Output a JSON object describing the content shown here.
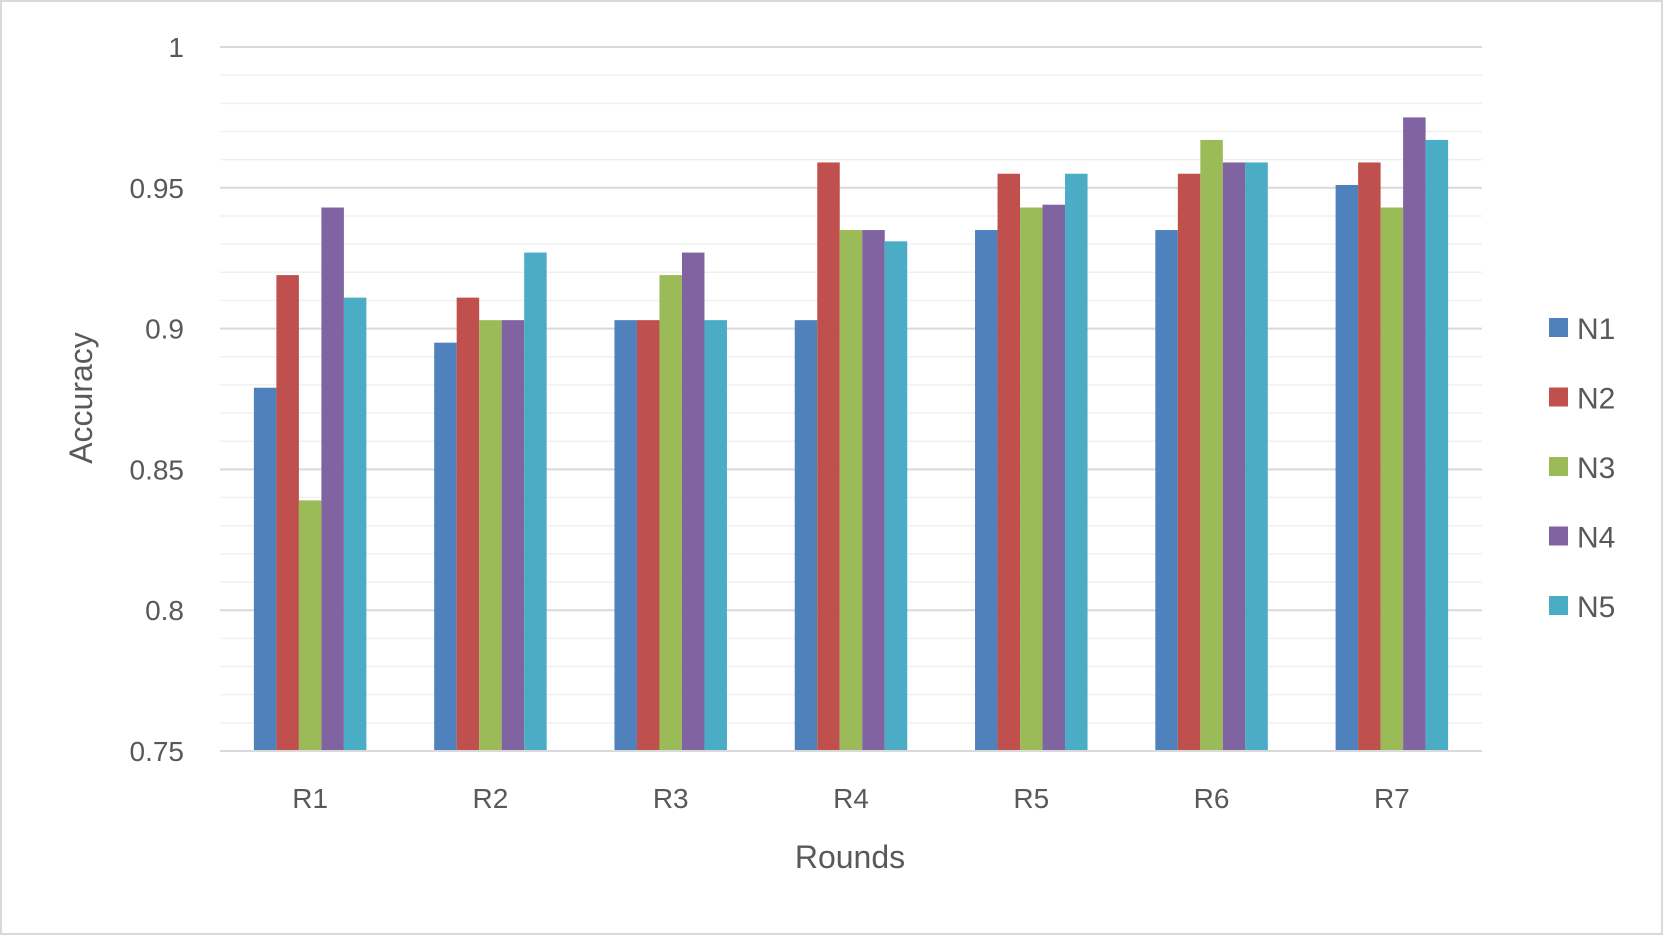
{
  "chart_data": {
    "type": "bar",
    "title": "",
    "xlabel": "Rounds",
    "ylabel": "Accuracy",
    "ylim": [
      0.75,
      1
    ],
    "y_ticks": [
      "0.75",
      "0.8",
      "0.85",
      "0.9",
      "0.95",
      "1"
    ],
    "y_tick_values": [
      0.75,
      0.8,
      0.85,
      0.9,
      0.95,
      1
    ],
    "minor_gridlines": true,
    "legend_position": "right",
    "categories": [
      "R1",
      "R2",
      "R3",
      "R4",
      "R5",
      "R6",
      "R7"
    ],
    "series": [
      {
        "name": "N1",
        "color": "#4f81bd",
        "values": [
          0.879,
          0.895,
          0.903,
          0.903,
          0.935,
          0.935,
          0.951
        ]
      },
      {
        "name": "N2",
        "color": "#c0504d",
        "values": [
          0.919,
          0.911,
          0.903,
          0.959,
          0.955,
          0.955,
          0.959
        ]
      },
      {
        "name": "N3",
        "color": "#9bbb59",
        "values": [
          0.839,
          0.903,
          0.919,
          0.935,
          0.943,
          0.967,
          0.943
        ]
      },
      {
        "name": "N4",
        "color": "#8064a2",
        "values": [
          0.943,
          0.903,
          0.927,
          0.935,
          0.944,
          0.959,
          0.975
        ]
      },
      {
        "name": "N5",
        "color": "#4bacc6",
        "values": [
          0.911,
          0.927,
          0.903,
          0.931,
          0.955,
          0.959,
          0.967
        ]
      }
    ]
  }
}
